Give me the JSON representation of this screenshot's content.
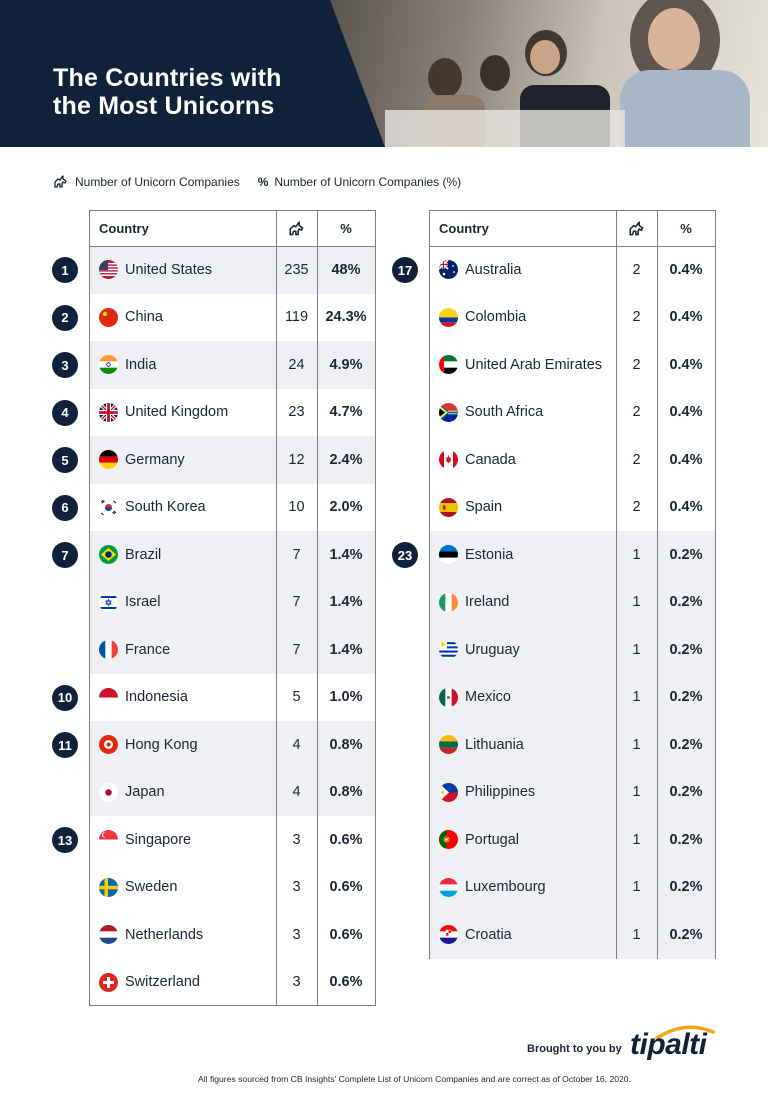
{
  "header": {
    "title_line1": "The Countries with",
    "title_line2": "the Most Unicorns"
  },
  "legend": {
    "count_label": "Number of Unicorn Companies",
    "pct_label": "Number of Unicorn Companies (%)",
    "count_icon": "unicorn-icon",
    "pct_icon": "percent-icon"
  },
  "table_header": {
    "country": "Country",
    "pct_symbol": "%"
  },
  "left_rows": [
    {
      "rank": "1",
      "country": "United States",
      "count": "235",
      "pct": "48%",
      "flag": "us"
    },
    {
      "rank": "2",
      "country": "China",
      "count": "119",
      "pct": "24.3%",
      "flag": "cn"
    },
    {
      "rank": "3",
      "country": "India",
      "count": "24",
      "pct": "4.9%",
      "flag": "in"
    },
    {
      "rank": "4",
      "country": "United Kingdom",
      "count": "23",
      "pct": "4.7%",
      "flag": "uk"
    },
    {
      "rank": "5",
      "country": "Germany",
      "count": "12",
      "pct": "2.4%",
      "flag": "de"
    },
    {
      "rank": "6",
      "country": "South Korea",
      "count": "10",
      "pct": "2.0%",
      "flag": "kr"
    },
    {
      "rank": "7",
      "country": "Brazil",
      "count": "7",
      "pct": "1.4%",
      "flag": "br"
    },
    {
      "rank": "",
      "country": "Israel",
      "count": "7",
      "pct": "1.4%",
      "flag": "il"
    },
    {
      "rank": "",
      "country": "France",
      "count": "7",
      "pct": "1.4%",
      "flag": "fr"
    },
    {
      "rank": "10",
      "country": "Indonesia",
      "count": "5",
      "pct": "1.0%",
      "flag": "id"
    },
    {
      "rank": "11",
      "country": "Hong Kong",
      "count": "4",
      "pct": "0.8%",
      "flag": "hk"
    },
    {
      "rank": "",
      "country": "Japan",
      "count": "4",
      "pct": "0.8%",
      "flag": "jp"
    },
    {
      "rank": "13",
      "country": "Singapore",
      "count": "3",
      "pct": "0.6%",
      "flag": "sg"
    },
    {
      "rank": "",
      "country": "Sweden",
      "count": "3",
      "pct": "0.6%",
      "flag": "se"
    },
    {
      "rank": "",
      "country": "Netherlands",
      "count": "3",
      "pct": "0.6%",
      "flag": "nl"
    },
    {
      "rank": "",
      "country": "Switzerland",
      "count": "3",
      "pct": "0.6%",
      "flag": "ch"
    }
  ],
  "right_rows": [
    {
      "rank": "17",
      "country": "Australia",
      "count": "2",
      "pct": "0.4%",
      "flag": "au"
    },
    {
      "rank": "",
      "country": "Colombia",
      "count": "2",
      "pct": "0.4%",
      "flag": "co"
    },
    {
      "rank": "",
      "country": "United Arab Emirates",
      "count": "2",
      "pct": "0.4%",
      "flag": "ae"
    },
    {
      "rank": "",
      "country": "South Africa",
      "count": "2",
      "pct": "0.4%",
      "flag": "za"
    },
    {
      "rank": "",
      "country": "Canada",
      "count": "2",
      "pct": "0.4%",
      "flag": "ca"
    },
    {
      "rank": "",
      "country": "Spain",
      "count": "2",
      "pct": "0.4%",
      "flag": "es"
    },
    {
      "rank": "23",
      "country": "Estonia",
      "count": "1",
      "pct": "0.2%",
      "flag": "ee"
    },
    {
      "rank": "",
      "country": "Ireland",
      "count": "1",
      "pct": "0.2%",
      "flag": "ie"
    },
    {
      "rank": "",
      "country": "Uruguay",
      "count": "1",
      "pct": "0.2%",
      "flag": "uy"
    },
    {
      "rank": "",
      "country": "Mexico",
      "count": "1",
      "pct": "0.2%",
      "flag": "mx"
    },
    {
      "rank": "",
      "country": "Lithuania",
      "count": "1",
      "pct": "0.2%",
      "flag": "lt"
    },
    {
      "rank": "",
      "country": "Philippines",
      "count": "1",
      "pct": "0.2%",
      "flag": "ph"
    },
    {
      "rank": "",
      "country": "Portugal",
      "count": "1",
      "pct": "0.2%",
      "flag": "pt"
    },
    {
      "rank": "",
      "country": "Luxembourg",
      "count": "1",
      "pct": "0.2%",
      "flag": "lu"
    },
    {
      "rank": "",
      "country": "Croatia",
      "count": "1",
      "pct": "0.2%",
      "flag": "hr"
    }
  ],
  "footer": {
    "brought_by": "Brought to you by",
    "logo_text": "tipalti",
    "footnote": "All figures sourced from CB Insights' Complete List of Unicorn Companies and are correct as of October 16, 2020."
  },
  "colors": {
    "navy": "#12213a",
    "shade": "#eef0f3",
    "border": "#7a7f88",
    "logo_arc": "#f2a71b"
  }
}
